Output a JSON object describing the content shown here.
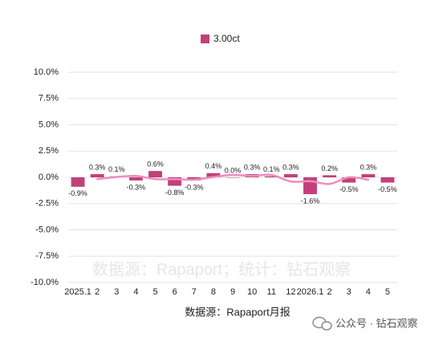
{
  "chart_data": {
    "type": "bar",
    "categories": [
      "2025.1",
      "2",
      "3",
      "4",
      "5",
      "6",
      "7",
      "8",
      "9",
      "10",
      "11",
      "12",
      "2026.1",
      "2",
      "3",
      "4",
      "5"
    ],
    "series": [
      {
        "name": "3.00ct",
        "color": "#c2407a",
        "values": [
          -0.9,
          0.3,
          0.1,
          -0.3,
          0.6,
          -0.8,
          -0.3,
          0.4,
          0.0,
          0.3,
          0.1,
          0.3,
          -1.6,
          0.2,
          -0.5,
          0.3,
          -0.5
        ],
        "value_labels": [
          "-0.9%",
          "0.3%",
          "0.1%",
          "-0.3%",
          "0.6%",
          "-0.8%",
          "-0.3%",
          "0.4%",
          "0.0%",
          "0.3%",
          "0.1%",
          "0.3%",
          "-1.6%",
          "0.2%",
          "-0.5%",
          "0.3%",
          "-0.5%"
        ]
      },
      {
        "type": "line",
        "color": "#ec8dbd",
        "values": [
          null,
          -0.17,
          0.03,
          0.13,
          -0.17,
          -0.17,
          -0.23,
          0.03,
          0.23,
          0.13,
          0.23,
          -0.4,
          -0.37,
          -0.63,
          0.0,
          -0.23,
          null
        ]
      }
    ],
    "ylim": [
      -10,
      10
    ],
    "yticks": [
      {
        "value": 10,
        "label": "10.0%"
      },
      {
        "value": 7.5,
        "label": "7.5%"
      },
      {
        "value": 5,
        "label": "5.0%"
      },
      {
        "value": 2.5,
        "label": "2.5%"
      },
      {
        "value": 0,
        "label": "0.0%"
      },
      {
        "value": -2.5,
        "label": "-2.5%"
      },
      {
        "value": -5,
        "label": "-5.0%"
      },
      {
        "value": -7.5,
        "label": "-7.5%"
      },
      {
        "value": -10,
        "label": "-10.0%"
      }
    ],
    "grid": true,
    "legend": "top",
    "watermark": "数据源：Rapaport；统计：钻石观察",
    "source_note": "数据源：Rapaport月报",
    "account": "公众号 · 钻石观察"
  }
}
